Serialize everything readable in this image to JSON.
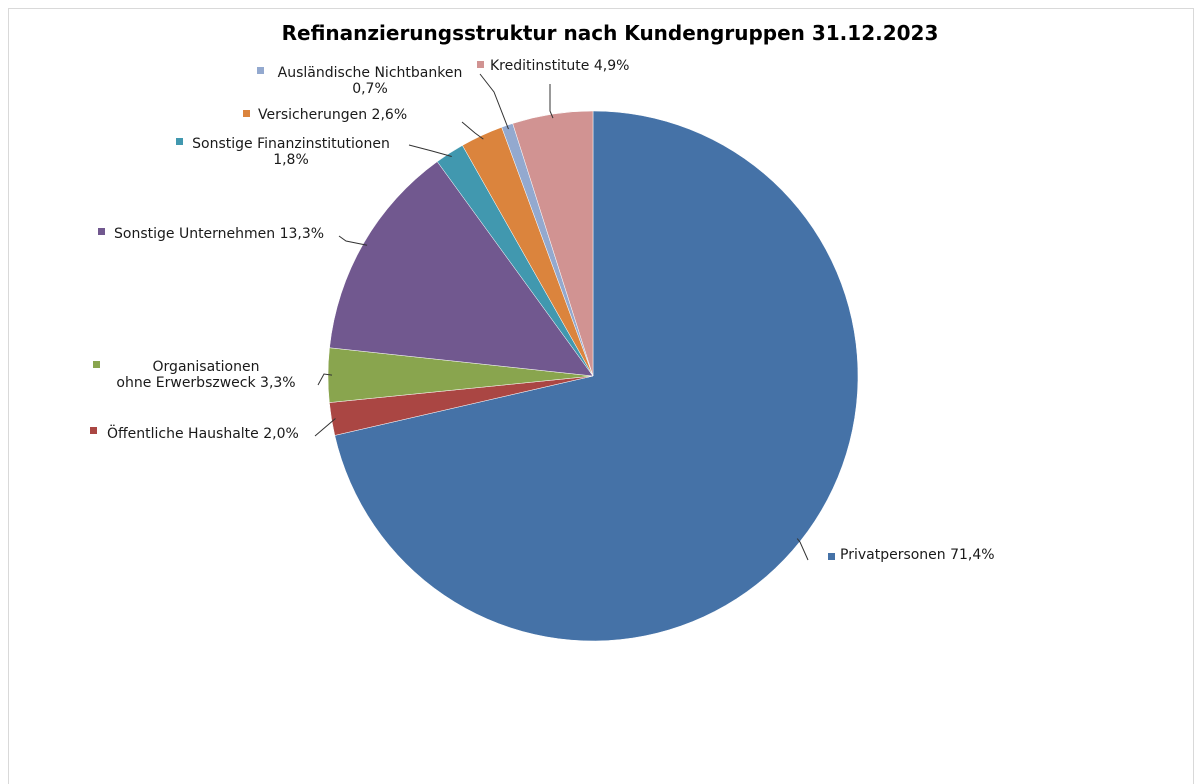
{
  "chart_data": {
    "type": "pie",
    "title": "Refinanzierungsstruktur nach Kundengruppen 31.12.2023",
    "categories": [
      "Privatpersonen",
      "Öffentliche Haushalte",
      "Organisationen ohne Erwerbszweck",
      "Sonstige Unternehmen",
      "Sonstige Finanzinstitutionen",
      "Versicherungen",
      "Ausländische Nichtbanken",
      "Kreditinstitute"
    ],
    "values": [
      71.4,
      2.0,
      3.3,
      13.3,
      1.8,
      2.6,
      0.7,
      4.9
    ],
    "colors": [
      "#4572A7",
      "#AA4643",
      "#89A54E",
      "#71588F",
      "#4198AF",
      "#DB843D",
      "#93A9CF",
      "#D19392"
    ],
    "labels": [
      {
        "lines": [
          "Privatpersonen 71,4%"
        ]
      },
      {
        "lines": [
          "Öffentliche Haushalte 2,0%"
        ]
      },
      {
        "lines": [
          "Organisationen",
          "ohne Erwerbszweck 3,3%"
        ]
      },
      {
        "lines": [
          "Sonstige Unternehmen 13,3%"
        ]
      },
      {
        "lines": [
          "Sonstige Finanzinstitutionen",
          "1,8%"
        ]
      },
      {
        "lines": [
          "Versicherungen 2,6%"
        ]
      },
      {
        "lines": [
          "Ausländische Nichtbanken",
          "0,7%"
        ]
      },
      {
        "lines": [
          "Kreditinstitute 4,9%"
        ]
      }
    ],
    "start_angle": "12 o'clock",
    "direction": "clockwise",
    "legend": "none"
  }
}
